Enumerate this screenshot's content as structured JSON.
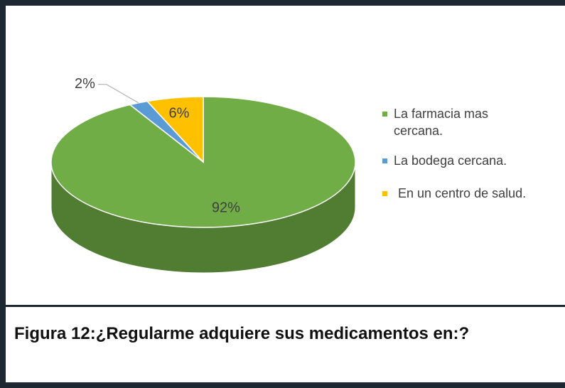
{
  "chart_data": {
    "type": "pie3d",
    "categories": [
      "La farmacia mas cercana.",
      "La bodega cercana.",
      "En un centro de salud."
    ],
    "values": [
      92,
      2,
      6
    ],
    "value_labels": [
      "92%",
      "2%",
      "6%"
    ],
    "colors": [
      "#70ad47",
      "#5b9bd5",
      "#ffc000"
    ],
    "legend": "right",
    "caption": "Figura 12:¿Regularme adquiere sus medicamentos en:?"
  }
}
